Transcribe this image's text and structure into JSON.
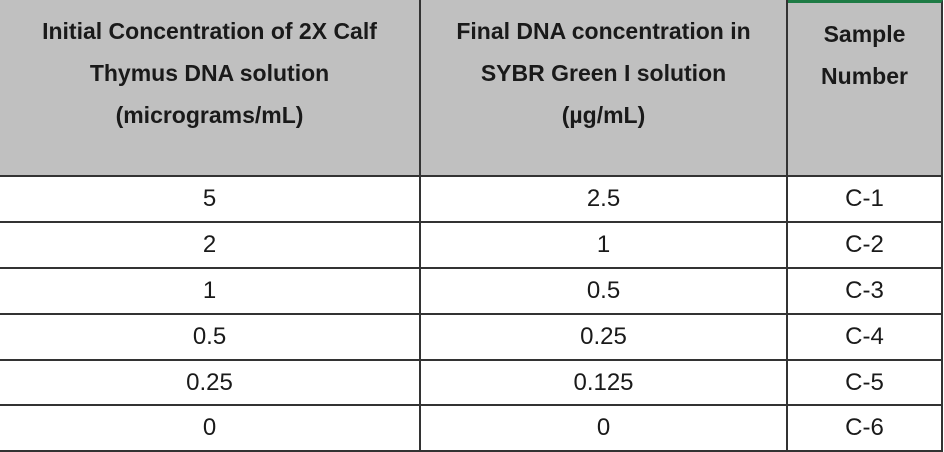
{
  "table": {
    "headers": [
      [
        "Initial Concentration of 2X Calf",
        "Thymus DNA solution",
        "(micrograms/mL)"
      ],
      [
        "Final DNA concentration in",
        "SYBR Green I solution",
        "(µg/mL)"
      ],
      [
        "Sample",
        "Number"
      ]
    ],
    "rows": [
      [
        5,
        2.5,
        "C-1"
      ],
      [
        2,
        1,
        "C-2"
      ],
      [
        1,
        0.5,
        "C-3"
      ],
      [
        0.5,
        0.25,
        "C-4"
      ],
      [
        0.25,
        0.125,
        "C-5"
      ],
      [
        0,
        0,
        "C-6"
      ]
    ]
  }
}
